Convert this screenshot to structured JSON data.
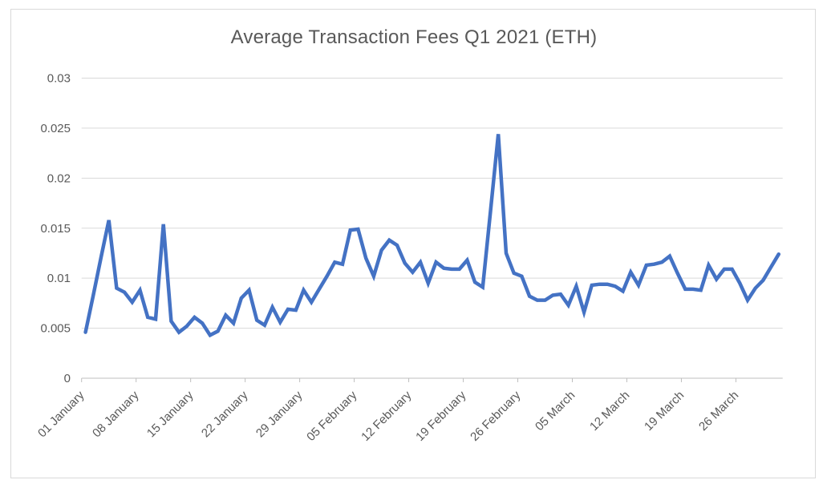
{
  "colors": {
    "line": "#4472C4",
    "gridline": "#D9D9D9",
    "axis_line": "#BFBFBF",
    "tick_label": "#595959",
    "title": "#595959",
    "frame_border": "#D9D9D9",
    "background": "#FFFFFF"
  },
  "chart_data": {
    "type": "line",
    "title": "Average Transaction Fees Q1 2021 (ETH)",
    "xlabel": "",
    "ylabel": "",
    "ylim": [
      0,
      0.03
    ],
    "ytick_values": [
      0,
      0.005,
      0.01,
      0.015,
      0.02,
      0.025,
      0.03
    ],
    "ytick_labels": [
      "0",
      "0.005",
      "0.01",
      "0.015",
      "0.02",
      "0.025",
      "0.03"
    ],
    "xtick_labels": [
      "01 January",
      "08 January",
      "15 January",
      "22 January",
      "29 January",
      "05 February",
      "12 February",
      "19 February",
      "26 February",
      "05 March",
      "12 March",
      "19 March",
      "26 March"
    ],
    "xtick_every_n_points": 7,
    "num_points": 90,
    "grid": "horizontal",
    "legend": false,
    "line_color": "#4472C4",
    "line_width": 4.5,
    "values": [
      0.0046,
      0.0083,
      0.0121,
      0.0158,
      0.009,
      0.0086,
      0.0076,
      0.0088,
      0.0061,
      0.0059,
      0.0154,
      0.0057,
      0.0046,
      0.0052,
      0.0061,
      0.0055,
      0.0043,
      0.0047,
      0.0063,
      0.0055,
      0.008,
      0.0088,
      0.0058,
      0.0053,
      0.0071,
      0.0056,
      0.0069,
      0.0068,
      0.0088,
      0.0076,
      0.0089,
      0.0102,
      0.0116,
      0.0114,
      0.0148,
      0.0149,
      0.012,
      0.0102,
      0.0128,
      0.0138,
      0.0133,
      0.0115,
      0.0106,
      0.0116,
      0.0095,
      0.0116,
      0.011,
      0.0109,
      0.0109,
      0.0118,
      0.0096,
      0.0091,
      0.0167,
      0.0244,
      0.0125,
      0.0105,
      0.0102,
      0.0082,
      0.0078,
      0.0078,
      0.0083,
      0.0084,
      0.0073,
      0.0092,
      0.0066,
      0.0093,
      0.0094,
      0.0094,
      0.0092,
      0.0087,
      0.0106,
      0.0093,
      0.0113,
      0.0114,
      0.0116,
      0.0122,
      0.0105,
      0.0089,
      0.0089,
      0.0088,
      0.0113,
      0.0099,
      0.0109,
      0.0109,
      0.0095,
      0.0078,
      0.009,
      0.0098,
      0.0111,
      0.0124
    ]
  }
}
